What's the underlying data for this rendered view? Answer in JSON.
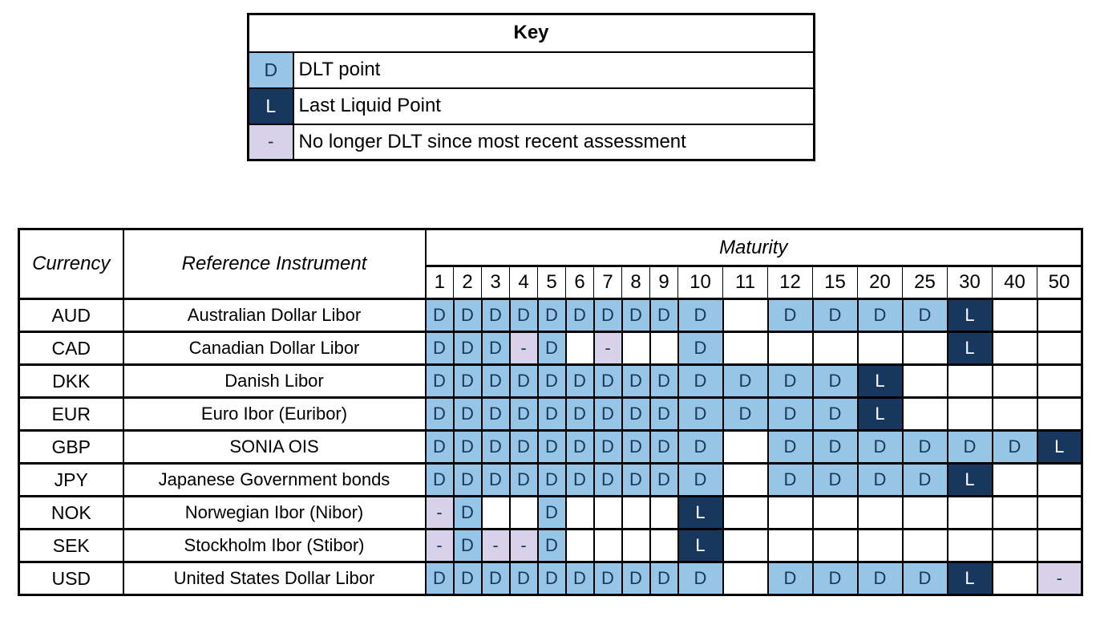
{
  "chart_data": {
    "type": "table",
    "legend": {
      "title": "Key",
      "entries": [
        {
          "symbol": "D",
          "name": "dlt-point",
          "label": "DLT point"
        },
        {
          "symbol": "L",
          "name": "last-liquid-point",
          "label": "Last Liquid Point"
        },
        {
          "symbol": "-",
          "name": "no-longer-dlt",
          "label": "No longer DLT since most recent assessment"
        }
      ]
    },
    "headers": {
      "currency": "Currency",
      "instrument": "Reference Instrument",
      "maturity": "Maturity"
    },
    "maturities": [
      "1",
      "2",
      "3",
      "4",
      "5",
      "6",
      "7",
      "8",
      "9",
      "10",
      "11",
      "12",
      "15",
      "20",
      "25",
      "30",
      "40",
      "50"
    ],
    "rows": [
      {
        "currency": "AUD",
        "instrument": "Australian Dollar Libor",
        "cells": [
          "D",
          "D",
          "D",
          "D",
          "D",
          "D",
          "D",
          "D",
          "D",
          "D",
          "",
          "D",
          "D",
          "D",
          "D",
          "L",
          "",
          ""
        ]
      },
      {
        "currency": "CAD",
        "instrument": "Canadian Dollar Libor",
        "cells": [
          "D",
          "D",
          "D",
          "-",
          "D",
          "",
          "-",
          "",
          "",
          "D",
          "",
          "",
          "",
          "",
          "",
          "L",
          "",
          ""
        ]
      },
      {
        "currency": "DKK",
        "instrument": "Danish Libor",
        "cells": [
          "D",
          "D",
          "D",
          "D",
          "D",
          "D",
          "D",
          "D",
          "D",
          "D",
          "D",
          "D",
          "D",
          "L",
          "",
          "",
          "",
          ""
        ]
      },
      {
        "currency": "EUR",
        "instrument": "Euro Ibor (Euribor)",
        "cells": [
          "D",
          "D",
          "D",
          "D",
          "D",
          "D",
          "D",
          "D",
          "D",
          "D",
          "D",
          "D",
          "D",
          "L",
          "",
          "",
          "",
          ""
        ]
      },
      {
        "currency": "GBP",
        "instrument": "SONIA OIS",
        "cells": [
          "D",
          "D",
          "D",
          "D",
          "D",
          "D",
          "D",
          "D",
          "D",
          "D",
          "",
          "D",
          "D",
          "D",
          "D",
          "D",
          "D",
          "L"
        ]
      },
      {
        "currency": "JPY",
        "instrument": "Japanese Government bonds",
        "cells": [
          "D",
          "D",
          "D",
          "D",
          "D",
          "D",
          "D",
          "D",
          "D",
          "D",
          "",
          "D",
          "D",
          "D",
          "D",
          "L",
          "",
          ""
        ]
      },
      {
        "currency": "NOK",
        "instrument": "Norwegian Ibor (Nibor)",
        "cells": [
          "-",
          "D",
          "",
          "",
          "D",
          "",
          "",
          "",
          "",
          "L",
          "",
          "",
          "",
          "",
          "",
          "",
          "",
          ""
        ]
      },
      {
        "currency": "SEK",
        "instrument": "Stockholm Ibor (Stibor)",
        "cells": [
          "-",
          "D",
          "-",
          "-",
          "D",
          "",
          "",
          "",
          "",
          "L",
          "",
          "",
          "",
          "",
          "",
          "",
          "",
          ""
        ]
      },
      {
        "currency": "USD",
        "instrument": "United States Dollar Libor",
        "cells": [
          "D",
          "D",
          "D",
          "D",
          "D",
          "D",
          "D",
          "D",
          "D",
          "D",
          "",
          "D",
          "D",
          "D",
          "D",
          "L",
          "",
          "-"
        ]
      }
    ]
  },
  "colors": {
    "dlt_cell_bg": "#97C5E8",
    "last_liquid_cell_bg": "#17375E",
    "no_longer_dlt_cell_bg": "#D7D2E9",
    "cell_letter": "#17375E",
    "last_liquid_letter": "#FFFFFF",
    "grid_border": "#000000",
    "page_bg": "#FFFFFF"
  },
  "layout_hints": {
    "currency_col_width": 130,
    "instrument_col_width": 377,
    "narrow_maturity_col_width": 35,
    "wide_maturity_col_width": 56
  }
}
